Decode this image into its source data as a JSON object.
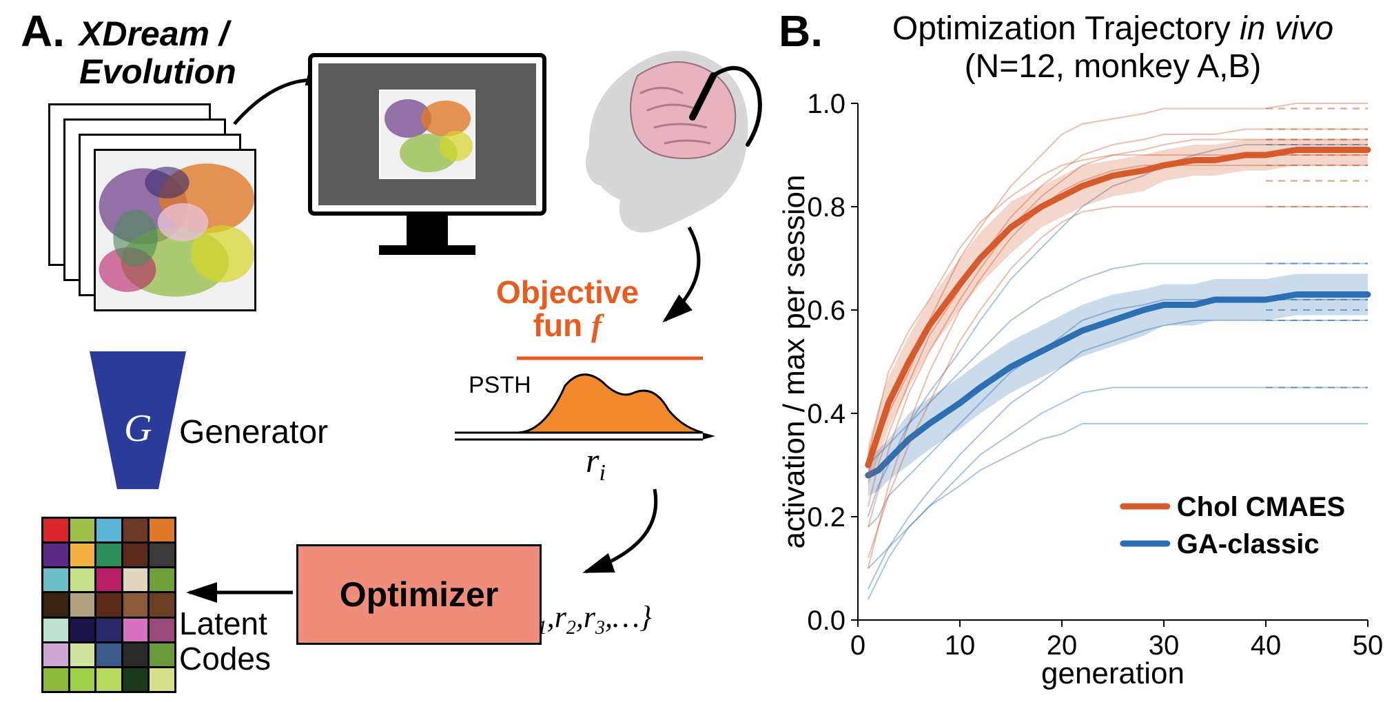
{
  "panelA": {
    "label": "A.",
    "title_line1": "XDream /",
    "title_line2": "Evolution",
    "generator_label": "Generator",
    "generator_letter": "G",
    "latent_label_line1": "Latent",
    "latent_label_line2": "Codes",
    "optimizer_label": "Optimizer",
    "optimizer_bg": "#f08c7a",
    "optimizer_text_color": "#000000",
    "objective_line1": "Objective",
    "objective_line2": "fun f",
    "objective_color": "#e85d1f",
    "psth_label": "PSTH",
    "psth_fill": "#f08a2c",
    "response_label": "rᵢ",
    "responses_label": "{r₁,r₂,r₃,…}",
    "generator_fill": "#2a3b9a",
    "latent_colors": [
      "#d9262c",
      "#a0c24a",
      "#5db4d6",
      "#6b3a26",
      "#e0782a",
      "#5b2a86",
      "#f2b342",
      "#2c8c5a",
      "#5b2a1a",
      "#3a3a3a",
      "#6fbfc7",
      "#c7e08a",
      "#b51f66",
      "#e0d6c0",
      "#6fa03a",
      "#3a2210",
      "#b0a080",
      "#5b2a1a",
      "#8a5a3a",
      "#6b3f24",
      "#bde0d0",
      "#1a1448",
      "#2a2a6a",
      "#d673c0",
      "#9a4a7a",
      "#cfa9d4",
      "#d0e4a0",
      "#3a5a8a",
      "#2a2a2a",
      "#6a9a3a",
      "#8cba3a",
      "#9fd04a",
      "#b7d95f",
      "#1a3a1a",
      "#d6e08a"
    ],
    "noise_image_colors": [
      "#6b3a86",
      "#e07a2a",
      "#8cba3a",
      "#d6d62a",
      "#e8c0d6",
      "#4a8a5a",
      "#b51f66",
      "#f0f0f0",
      "#3a2a6a",
      "#d6a02a"
    ]
  },
  "panelB": {
    "label": "B.",
    "title_line1": "Optimization Trajectory <tspan font-style='italic'>in vivo</tspan>",
    "title_line2": "(N=12, monkey A,B)",
    "title_text_line1_plain": "Optimization Trajectory in vivo",
    "title_text_line2": "(N=12, monkey A,B)",
    "xlabel": "generation",
    "ylabel": "activation / max per session",
    "xlim": [
      0,
      50
    ],
    "ylim": [
      0.0,
      1.0
    ],
    "xticks": [
      0,
      10,
      20,
      30,
      40,
      50
    ],
    "yticks": [
      0.0,
      0.2,
      0.4,
      0.6,
      0.8,
      1.0
    ],
    "tick_fontsize": 40,
    "label_fontsize": 44,
    "series": {
      "chol_cmaes": {
        "label": "Chol CMAES",
        "color": "#d55a2c",
        "fill_opacity": 0.25,
        "x": [
          1,
          2,
          3,
          5,
          7,
          10,
          12,
          15,
          18,
          20,
          22,
          25,
          28,
          30,
          33,
          35,
          38,
          40,
          43,
          45,
          48,
          50
        ],
        "mean": [
          0.3,
          0.36,
          0.42,
          0.5,
          0.57,
          0.65,
          0.7,
          0.76,
          0.8,
          0.82,
          0.84,
          0.86,
          0.87,
          0.88,
          0.89,
          0.89,
          0.9,
          0.9,
          0.91,
          0.91,
          0.91,
          0.91
        ],
        "lo": [
          0.26,
          0.31,
          0.37,
          0.45,
          0.52,
          0.6,
          0.65,
          0.71,
          0.76,
          0.78,
          0.8,
          0.82,
          0.83,
          0.85,
          0.86,
          0.86,
          0.87,
          0.87,
          0.88,
          0.88,
          0.88,
          0.88
        ],
        "hi": [
          0.34,
          0.41,
          0.47,
          0.55,
          0.62,
          0.7,
          0.75,
          0.81,
          0.84,
          0.86,
          0.88,
          0.89,
          0.9,
          0.91,
          0.92,
          0.92,
          0.93,
          0.93,
          0.93,
          0.93,
          0.93,
          0.93
        ],
        "thin_lines": [
          [
            0.28,
            0.35,
            0.4,
            0.48,
            0.58,
            0.7,
            0.76,
            0.84,
            0.9,
            0.94,
            0.96,
            0.97,
            0.98,
            0.99,
            0.99,
            0.99,
            0.99,
            0.99,
            1.0,
            1.0,
            1.0,
            1.0
          ],
          [
            0.22,
            0.3,
            0.36,
            0.46,
            0.55,
            0.64,
            0.7,
            0.78,
            0.84,
            0.87,
            0.9,
            0.92,
            0.93,
            0.94,
            0.94,
            0.94,
            0.95,
            0.95,
            0.95,
            0.95,
            0.95,
            0.95
          ],
          [
            0.18,
            0.25,
            0.33,
            0.44,
            0.52,
            0.62,
            0.68,
            0.76,
            0.82,
            0.85,
            0.88,
            0.9,
            0.91,
            0.92,
            0.93,
            0.93,
            0.93,
            0.93,
            0.93,
            0.93,
            0.93,
            0.93
          ],
          [
            0.32,
            0.4,
            0.48,
            0.56,
            0.62,
            0.72,
            0.77,
            0.82,
            0.86,
            0.88,
            0.89,
            0.9,
            0.9,
            0.9,
            0.9,
            0.9,
            0.9,
            0.9,
            0.9,
            0.9,
            0.9,
            0.9
          ],
          [
            0.1,
            0.18,
            0.26,
            0.38,
            0.48,
            0.6,
            0.66,
            0.74,
            0.8,
            0.83,
            0.85,
            0.87,
            0.88,
            0.88,
            0.88,
            0.88,
            0.88,
            0.88,
            0.88,
            0.88,
            0.88,
            0.88
          ],
          [
            0.12,
            0.18,
            0.24,
            0.34,
            0.42,
            0.54,
            0.6,
            0.68,
            0.74,
            0.77,
            0.79,
            0.8,
            0.8,
            0.8,
            0.8,
            0.8,
            0.8,
            0.8,
            0.8,
            0.8,
            0.8,
            0.8
          ]
        ],
        "dashed_ends": [
          0.99,
          0.95,
          0.93,
          0.93,
          0.9,
          0.88,
          0.85,
          0.8
        ]
      },
      "ga_classic": {
        "label": "GA-classic",
        "color": "#2c6fb3",
        "fill_opacity": 0.25,
        "x": [
          1,
          2,
          3,
          5,
          7,
          10,
          12,
          15,
          18,
          20,
          22,
          25,
          28,
          30,
          33,
          35,
          38,
          40,
          43,
          45,
          48,
          50
        ],
        "mean": [
          0.28,
          0.29,
          0.31,
          0.35,
          0.38,
          0.42,
          0.45,
          0.49,
          0.52,
          0.54,
          0.56,
          0.58,
          0.6,
          0.61,
          0.61,
          0.62,
          0.62,
          0.62,
          0.63,
          0.63,
          0.63,
          0.63
        ],
        "lo": [
          0.24,
          0.25,
          0.27,
          0.3,
          0.33,
          0.37,
          0.4,
          0.44,
          0.47,
          0.49,
          0.51,
          0.53,
          0.55,
          0.57,
          0.57,
          0.58,
          0.58,
          0.58,
          0.59,
          0.59,
          0.59,
          0.59
        ],
        "hi": [
          0.32,
          0.33,
          0.35,
          0.4,
          0.43,
          0.47,
          0.5,
          0.54,
          0.57,
          0.59,
          0.61,
          0.63,
          0.64,
          0.65,
          0.65,
          0.66,
          0.66,
          0.66,
          0.67,
          0.67,
          0.67,
          0.67
        ],
        "thin_lines": [
          [
            0.2,
            0.26,
            0.3,
            0.38,
            0.44,
            0.52,
            0.58,
            0.66,
            0.72,
            0.76,
            0.8,
            0.84,
            0.86,
            0.88,
            0.9,
            0.91,
            0.92,
            0.92,
            0.92,
            0.92,
            0.92,
            0.92
          ],
          [
            0.3,
            0.32,
            0.34,
            0.38,
            0.42,
            0.48,
            0.52,
            0.58,
            0.62,
            0.64,
            0.66,
            0.68,
            0.69,
            0.69,
            0.69,
            0.69,
            0.69,
            0.69,
            0.69,
            0.69,
            0.69,
            0.69
          ],
          [
            0.18,
            0.2,
            0.24,
            0.28,
            0.32,
            0.38,
            0.42,
            0.48,
            0.52,
            0.55,
            0.58,
            0.6,
            0.61,
            0.62,
            0.62,
            0.62,
            0.62,
            0.62,
            0.62,
            0.62,
            0.62,
            0.62
          ],
          [
            0.06,
            0.1,
            0.14,
            0.2,
            0.25,
            0.32,
            0.36,
            0.42,
            0.46,
            0.49,
            0.52,
            0.54,
            0.56,
            0.57,
            0.58,
            0.58,
            0.58,
            0.58,
            0.58,
            0.58,
            0.58,
            0.58
          ],
          [
            0.04,
            0.08,
            0.12,
            0.18,
            0.22,
            0.28,
            0.32,
            0.36,
            0.4,
            0.42,
            0.44,
            0.45,
            0.45,
            0.45,
            0.45,
            0.45,
            0.45,
            0.45,
            0.45,
            0.45,
            0.45,
            0.45
          ],
          [
            0.1,
            0.12,
            0.14,
            0.18,
            0.22,
            0.26,
            0.29,
            0.32,
            0.35,
            0.36,
            0.38,
            0.38,
            0.38,
            0.38,
            0.38,
            0.38,
            0.38,
            0.38,
            0.38,
            0.38,
            0.38,
            0.38
          ]
        ],
        "dashed_ends": [
          0.92,
          0.69,
          0.62,
          0.6,
          0.58,
          0.45
        ]
      }
    }
  }
}
